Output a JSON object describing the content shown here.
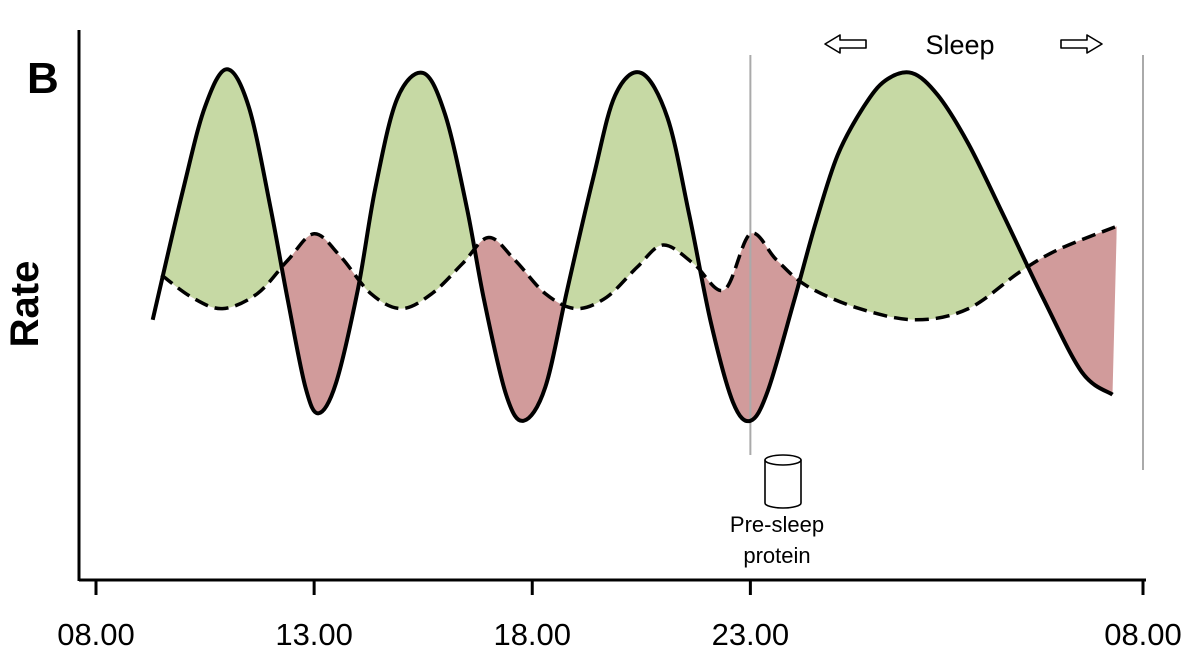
{
  "panel_label": "B",
  "chart_data": {
    "type": "line",
    "title": "",
    "xlabel": "",
    "ylabel": "Rate",
    "x_ticks": [
      "08.00",
      "13.00",
      "18.00",
      "23.00",
      "08.00"
    ],
    "x_tick_hours": [
      8,
      13,
      18,
      23,
      32
    ],
    "xlim_hours": [
      8,
      32
    ],
    "ylim": [
      0,
      10
    ],
    "grid": false,
    "legend": "none",
    "series": [
      {
        "style": "solid",
        "color": "#000000",
        "points": [
          [
            9.3,
            3.0
          ],
          [
            10.0,
            6.5
          ],
          [
            10.5,
            8.7
          ],
          [
            11.0,
            9.7
          ],
          [
            11.5,
            8.7
          ],
          [
            12.0,
            6.0
          ],
          [
            12.4,
            3.5
          ],
          [
            12.8,
            1.2
          ],
          [
            13.1,
            0.5
          ],
          [
            13.5,
            1.3
          ],
          [
            14.0,
            3.8
          ],
          [
            14.4,
            6.5
          ],
          [
            14.9,
            8.9
          ],
          [
            15.5,
            9.6
          ],
          [
            16.0,
            8.5
          ],
          [
            16.5,
            6.0
          ],
          [
            16.9,
            3.5
          ],
          [
            17.4,
            1.0
          ],
          [
            17.8,
            0.3
          ],
          [
            18.3,
            1.2
          ],
          [
            18.8,
            3.8
          ],
          [
            19.4,
            6.8
          ],
          [
            19.9,
            9.0
          ],
          [
            20.5,
            9.6
          ],
          [
            21.1,
            8.4
          ],
          [
            21.6,
            5.8
          ],
          [
            22.1,
            2.9
          ],
          [
            22.6,
            0.8
          ],
          [
            23.0,
            0.3
          ],
          [
            23.4,
            1.1
          ],
          [
            24.0,
            3.5
          ],
          [
            24.5,
            5.6
          ],
          [
            25.0,
            7.4
          ],
          [
            25.6,
            8.7
          ],
          [
            26.1,
            9.4
          ],
          [
            26.7,
            9.6
          ],
          [
            27.3,
            9.0
          ],
          [
            28.0,
            7.7
          ],
          [
            28.8,
            5.8
          ],
          [
            29.7,
            3.6
          ],
          [
            30.6,
            1.6
          ],
          [
            31.3,
            1.0
          ]
        ]
      },
      {
        "style": "dashed",
        "color": "#000000",
        "points": [
          [
            9.5,
            4.2
          ],
          [
            10.2,
            3.6
          ],
          [
            10.9,
            3.3
          ],
          [
            11.7,
            3.7
          ],
          [
            12.4,
            4.6
          ],
          [
            13.0,
            5.3
          ],
          [
            13.6,
            4.7
          ],
          [
            14.3,
            3.7
          ],
          [
            15.0,
            3.3
          ],
          [
            15.7,
            3.7
          ],
          [
            16.4,
            4.5
          ],
          [
            17.0,
            5.2
          ],
          [
            17.6,
            4.6
          ],
          [
            18.3,
            3.7
          ],
          [
            19.0,
            3.3
          ],
          [
            19.7,
            3.6
          ],
          [
            20.4,
            4.4
          ],
          [
            21.0,
            5.0
          ],
          [
            21.7,
            4.5
          ],
          [
            22.4,
            3.8
          ],
          [
            23.0,
            5.3
          ],
          [
            23.6,
            4.6
          ],
          [
            24.3,
            3.9
          ],
          [
            25.5,
            3.3
          ],
          [
            26.8,
            3.0
          ],
          [
            28.0,
            3.3
          ],
          [
            29.2,
            4.3
          ],
          [
            30.1,
            4.9
          ],
          [
            31.4,
            5.5
          ]
        ]
      }
    ],
    "shading": [
      {
        "region": "solid above dashed",
        "color": "#c6d9a4"
      },
      {
        "region": "solid below dashed",
        "color": "#d19b9b"
      }
    ],
    "annotations": [
      {
        "text": "Sleep",
        "x_hours": [
          23,
          32
        ]
      },
      {
        "text": "Pre-sleep protein",
        "lines": [
          "Pre-sleep",
          "protein"
        ],
        "x_hours": 23
      }
    ],
    "vertical_lines_hours": [
      23,
      32
    ]
  }
}
